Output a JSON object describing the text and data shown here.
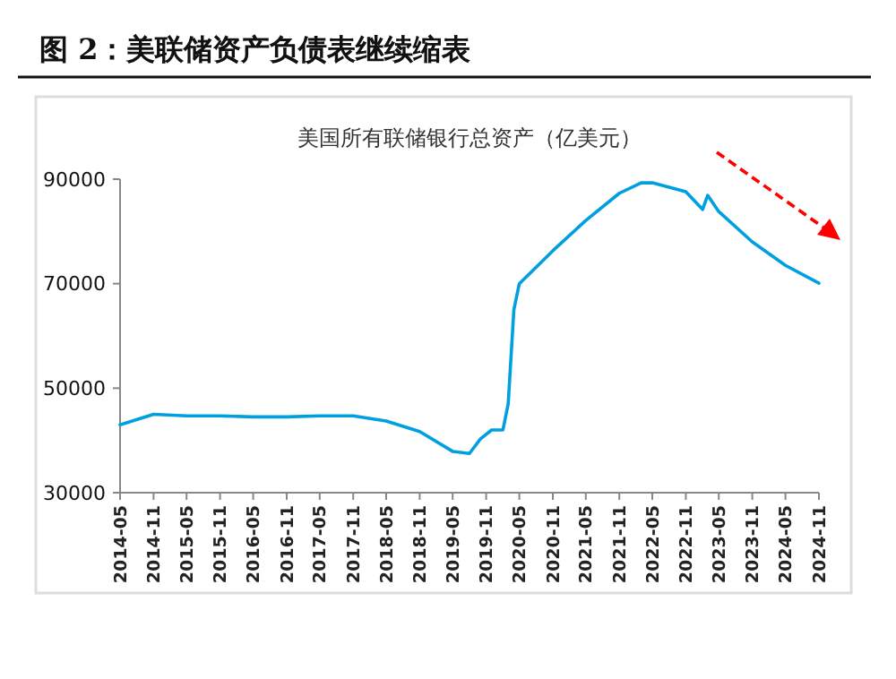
{
  "chart_data": {
    "type": "line",
    "title": "图 2：美联储资产负债表继续缩表",
    "subtitle": "美国所有联储银行总资产（亿美元）",
    "x": [
      "2014-05",
      "2014-11",
      "2015-05",
      "2015-11",
      "2016-05",
      "2016-11",
      "2017-05",
      "2017-11",
      "2018-05",
      "2018-11",
      "2019-05",
      "2019-08",
      "2019-10",
      "2019-12",
      "2020-02",
      "2020-03",
      "2020-04",
      "2020-05",
      "2020-11",
      "2021-05",
      "2021-11",
      "2022-03",
      "2022-05",
      "2022-11",
      "2023-02",
      "2023-03",
      "2023-05",
      "2023-11",
      "2024-05",
      "2024-11"
    ],
    "series": [
      {
        "color": "#00a0e0",
        "values": [
          43000,
          45000,
          44700,
          44700,
          44500,
          44500,
          44700,
          44700,
          43700,
          41700,
          37900,
          37500,
          40300,
          42000,
          42000,
          47000,
          65000,
          70000,
          76300,
          82100,
          87300,
          89300,
          89300,
          87600,
          84200,
          86900,
          83800,
          78000,
          73500,
          70100
        ]
      }
    ],
    "xlim": [
      "2014-05",
      "2024-11"
    ],
    "xticks": [
      "2014-05",
      "2014-11",
      "2015-05",
      "2015-11",
      "2016-05",
      "2016-11",
      "2017-05",
      "2017-11",
      "2018-05",
      "2018-11",
      "2019-05",
      "2019-11",
      "2020-05",
      "2020-11",
      "2021-05",
      "2021-11",
      "2022-05",
      "2022-11",
      "2023-05",
      "2023-11",
      "2024-05",
      "2024-11"
    ],
    "ylim": [
      30000,
      90000
    ],
    "yticks": [
      30000,
      50000,
      70000,
      90000
    ],
    "grid": false,
    "marker": "none",
    "line_style": "solid"
  }
}
